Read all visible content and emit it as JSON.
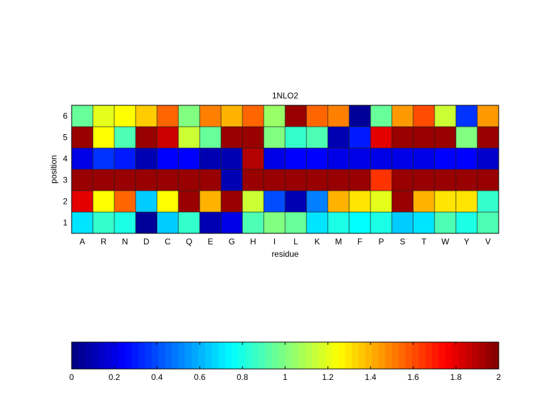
{
  "chart_data": [
    {
      "type": "heatmap",
      "title": "1NLO2",
      "xlabel": "residue",
      "ylabel": "position",
      "x_categories": [
        "A",
        "R",
        "N",
        "D",
        "C",
        "Q",
        "E",
        "G",
        "H",
        "I",
        "L",
        "K",
        "M",
        "F",
        "P",
        "S",
        "T",
        "W",
        "Y",
        "V"
      ],
      "y_categories": [
        "1",
        "2",
        "3",
        "4",
        "5",
        "6"
      ],
      "colormap": "jet",
      "clim": [
        0,
        2
      ],
      "values": [
        [
          0.7,
          0.85,
          0.8,
          0.05,
          0.65,
          0.85,
          0.1,
          0.2,
          0.9,
          1.0,
          0.95,
          0.7,
          0.8,
          0.75,
          0.8,
          0.65,
          0.7,
          0.9,
          0.8,
          0.9
        ],
        [
          1.8,
          1.25,
          1.55,
          0.65,
          1.25,
          1.95,
          1.4,
          1.95,
          1.15,
          0.4,
          0.1,
          0.5,
          1.4,
          1.3,
          1.2,
          1.95,
          1.4,
          1.3,
          1.3,
          0.85
        ],
        [
          1.95,
          1.95,
          1.95,
          1.95,
          1.95,
          1.95,
          1.95,
          0.1,
          1.95,
          1.95,
          1.95,
          1.95,
          1.95,
          1.95,
          1.65,
          1.95,
          1.95,
          1.95,
          1.95,
          1.95
        ],
        [
          0.2,
          0.35,
          0.3,
          0.1,
          0.25,
          0.25,
          0.1,
          0.1,
          1.9,
          0.2,
          0.25,
          0.25,
          0.2,
          0.2,
          0.2,
          0.2,
          0.2,
          0.25,
          0.25,
          0.15
        ],
        [
          1.95,
          1.25,
          0.9,
          1.95,
          1.85,
          1.15,
          0.95,
          1.95,
          1.95,
          1.0,
          0.85,
          0.9,
          0.1,
          0.3,
          1.8,
          1.95,
          1.95,
          1.95,
          1.0,
          1.95
        ],
        [
          0.95,
          1.2,
          1.25,
          1.35,
          1.55,
          1.0,
          1.5,
          1.4,
          1.55,
          1.05,
          1.95,
          1.55,
          1.5,
          0.05,
          0.95,
          1.45,
          1.6,
          1.15,
          0.35,
          1.45
        ]
      ]
    },
    {
      "type": "colorbar",
      "colormap": "jet",
      "range": [
        0,
        2
      ],
      "ticks": [
        "0",
        "0.2",
        "0.4",
        "0.6",
        "0.8",
        "1",
        "1.2",
        "1.4",
        "1.6",
        "1.8",
        "2"
      ],
      "levels": 64
    }
  ]
}
